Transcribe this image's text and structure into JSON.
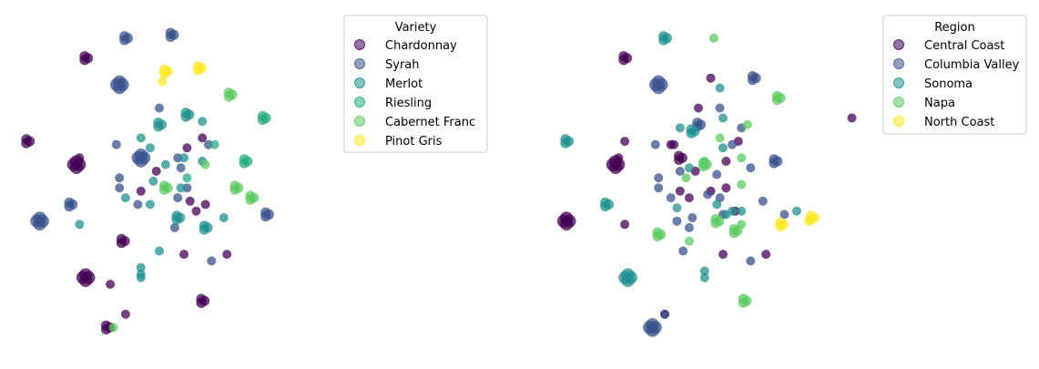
{
  "chart_data": [
    {
      "type": "scatter",
      "legend_title": "Variety",
      "legend_location": "upper-right",
      "axes_visible": false,
      "grid": false,
      "xlim": [
        0,
        100
      ],
      "ylim": [
        0,
        100
      ],
      "categories": [
        {
          "name": "Chardonnay",
          "color": "#440154"
        },
        {
          "name": "Syrah",
          "color": "#3b528b"
        },
        {
          "name": "Merlot",
          "color": "#21908d"
        },
        {
          "name": "Riesling",
          "color": "#27ad81"
        },
        {
          "name": "Cabernet Franc",
          "color": "#5ec962"
        },
        {
          "name": "Pinot Gris",
          "color": "#fde725"
        }
      ],
      "points": [
        {
          "x": 22,
          "y": 88,
          "c": 0,
          "s": 2
        },
        {
          "x": 3,
          "y": 63,
          "c": 0,
          "s": 2
        },
        {
          "x": 19,
          "y": 56,
          "c": 0,
          "s": 3
        },
        {
          "x": 20,
          "y": 58,
          "c": 0,
          "s": 1
        },
        {
          "x": 22,
          "y": 22,
          "c": 0,
          "s": 3
        },
        {
          "x": 34,
          "y": 33,
          "c": 0,
          "s": 2
        },
        {
          "x": 30,
          "y": 20,
          "c": 0,
          "s": 1
        },
        {
          "x": 29,
          "y": 7,
          "c": 0,
          "s": 2
        },
        {
          "x": 55,
          "y": 61,
          "c": 0,
          "s": 1
        },
        {
          "x": 45,
          "y": 54,
          "c": 0,
          "s": 1
        },
        {
          "x": 40,
          "y": 48,
          "c": 0,
          "s": 1
        },
        {
          "x": 56,
          "y": 45,
          "c": 0,
          "s": 1
        },
        {
          "x": 61,
          "y": 44,
          "c": 0,
          "s": 1
        },
        {
          "x": 58,
          "y": 42,
          "c": 0,
          "s": 1
        },
        {
          "x": 54,
          "y": 29,
          "c": 0,
          "s": 1
        },
        {
          "x": 68,
          "y": 29,
          "c": 0,
          "s": 1
        },
        {
          "x": 60,
          "y": 15,
          "c": 0,
          "s": 2
        },
        {
          "x": 35,
          "y": 11,
          "c": 0,
          "s": 1
        },
        {
          "x": 60,
          "y": 64,
          "c": 0,
          "s": 1
        },
        {
          "x": 35,
          "y": 94,
          "c": 1,
          "s": 2
        },
        {
          "x": 50,
          "y": 95,
          "c": 1,
          "s": 2
        },
        {
          "x": 33,
          "y": 80,
          "c": 1,
          "s": 3
        },
        {
          "x": 46,
          "y": 73,
          "c": 1,
          "s": 1
        },
        {
          "x": 32,
          "y": 62,
          "c": 1,
          "s": 1
        },
        {
          "x": 40,
          "y": 58,
          "c": 1,
          "s": 3
        },
        {
          "x": 33,
          "y": 52,
          "c": 1,
          "s": 1
        },
        {
          "x": 33,
          "y": 49,
          "c": 1,
          "s": 1
        },
        {
          "x": 17,
          "y": 44,
          "c": 1,
          "s": 2
        },
        {
          "x": 7,
          "y": 39,
          "c": 1,
          "s": 3
        },
        {
          "x": 52,
          "y": 58,
          "c": 1,
          "s": 1
        },
        {
          "x": 62,
          "y": 62,
          "c": 1,
          "s": 1
        },
        {
          "x": 53,
          "y": 55,
          "c": 1,
          "s": 1
        },
        {
          "x": 55,
          "y": 49,
          "c": 1,
          "s": 1
        },
        {
          "x": 52,
          "y": 46,
          "c": 1,
          "s": 1
        },
        {
          "x": 63,
          "y": 27,
          "c": 1,
          "s": 1
        },
        {
          "x": 81,
          "y": 41,
          "c": 1,
          "s": 2
        },
        {
          "x": 39,
          "y": 44,
          "c": 1,
          "s": 1
        },
        {
          "x": 51,
          "y": 37,
          "c": 1,
          "s": 1
        },
        {
          "x": 46,
          "y": 68,
          "c": 2,
          "s": 2
        },
        {
          "x": 40,
          "y": 64,
          "c": 2,
          "s": 1
        },
        {
          "x": 55,
          "y": 71,
          "c": 2,
          "s": 2
        },
        {
          "x": 60,
          "y": 69,
          "c": 2,
          "s": 1
        },
        {
          "x": 43,
          "y": 61,
          "c": 2,
          "s": 1
        },
        {
          "x": 48,
          "y": 56,
          "c": 2,
          "s": 1
        },
        {
          "x": 44,
          "y": 51,
          "c": 2,
          "s": 1
        },
        {
          "x": 53,
          "y": 49,
          "c": 2,
          "s": 1
        },
        {
          "x": 43,
          "y": 44,
          "c": 2,
          "s": 1
        },
        {
          "x": 20,
          "y": 38,
          "c": 2,
          "s": 1
        },
        {
          "x": 52,
          "y": 40,
          "c": 2,
          "s": 2
        },
        {
          "x": 61,
          "y": 37,
          "c": 2,
          "s": 2
        },
        {
          "x": 46,
          "y": 30,
          "c": 2,
          "s": 1
        },
        {
          "x": 40,
          "y": 25,
          "c": 2,
          "s": 1
        },
        {
          "x": 40,
          "y": 22,
          "c": 2,
          "s": 1
        },
        {
          "x": 35,
          "y": 46,
          "c": 2,
          "s": 1
        },
        {
          "x": 54,
          "y": 58,
          "c": 2,
          "s": 1
        },
        {
          "x": 60,
          "y": 57,
          "c": 2,
          "s": 1
        },
        {
          "x": 67,
          "y": 40,
          "c": 2,
          "s": 1
        },
        {
          "x": 40,
          "y": 23,
          "c": 2,
          "s": 1
        },
        {
          "x": 80,
          "y": 70,
          "c": 3,
          "s": 2
        },
        {
          "x": 64,
          "y": 62,
          "c": 3,
          "s": 1
        },
        {
          "x": 74,
          "y": 57,
          "c": 3,
          "s": 2
        },
        {
          "x": 55,
          "y": 52,
          "c": 3,
          "s": 1
        },
        {
          "x": 69,
          "y": 77,
          "c": 4,
          "s": 2
        },
        {
          "x": 61,
          "y": 56,
          "c": 4,
          "s": 1
        },
        {
          "x": 48,
          "y": 49,
          "c": 4,
          "s": 2
        },
        {
          "x": 71,
          "y": 49,
          "c": 4,
          "s": 2
        },
        {
          "x": 76,
          "y": 46,
          "c": 4,
          "s": 2
        },
        {
          "x": 31,
          "y": 7,
          "c": 4,
          "s": 1
        },
        {
          "x": 48,
          "y": 84,
          "c": 5,
          "s": 2
        },
        {
          "x": 59,
          "y": 85,
          "c": 5,
          "s": 2
        },
        {
          "x": 47,
          "y": 81,
          "c": 5,
          "s": 1
        }
      ]
    },
    {
      "type": "scatter",
      "legend_title": "Region",
      "legend_location": "upper-right",
      "axes_visible": false,
      "grid": false,
      "xlim": [
        0,
        100
      ],
      "ylim": [
        0,
        100
      ],
      "categories": [
        {
          "name": "Central Coast",
          "color": "#440154"
        },
        {
          "name": "Columbia Valley",
          "color": "#3b528b"
        },
        {
          "name": "Sonoma",
          "color": "#21908d"
        },
        {
          "name": "Napa",
          "color": "#5ec962"
        },
        {
          "name": "North Coast",
          "color": "#fde725"
        }
      ],
      "points": [
        {
          "x": 22,
          "y": 88,
          "c": 0,
          "s": 2
        },
        {
          "x": 19,
          "y": 56,
          "c": 0,
          "s": 3
        },
        {
          "x": 20,
          "y": 58,
          "c": 0,
          "s": 1
        },
        {
          "x": 3,
          "y": 39,
          "c": 0,
          "s": 3
        },
        {
          "x": 22,
          "y": 63,
          "c": 0,
          "s": 1
        },
        {
          "x": 40,
          "y": 58,
          "c": 0,
          "s": 2
        },
        {
          "x": 38,
          "y": 62,
          "c": 0,
          "s": 1
        },
        {
          "x": 45,
          "y": 54,
          "c": 0,
          "s": 1
        },
        {
          "x": 40,
          "y": 48,
          "c": 0,
          "s": 1
        },
        {
          "x": 50,
          "y": 48,
          "c": 0,
          "s": 1
        },
        {
          "x": 43,
          "y": 46,
          "c": 0,
          "s": 1
        },
        {
          "x": 55,
          "y": 49,
          "c": 0,
          "s": 1
        },
        {
          "x": 58,
          "y": 42,
          "c": 0,
          "s": 1
        },
        {
          "x": 55,
          "y": 57,
          "c": 0,
          "s": 1
        },
        {
          "x": 59,
          "y": 63,
          "c": 0,
          "s": 1
        },
        {
          "x": 54,
          "y": 29,
          "c": 0,
          "s": 1
        },
        {
          "x": 68,
          "y": 29,
          "c": 0,
          "s": 1
        },
        {
          "x": 50,
          "y": 82,
          "c": 0,
          "s": 1
        },
        {
          "x": 46,
          "y": 73,
          "c": 0,
          "s": 1
        },
        {
          "x": 35,
          "y": 11,
          "c": 0,
          "s": 1
        },
        {
          "x": 37,
          "y": 62,
          "c": 0,
          "s": 1
        },
        {
          "x": 96,
          "y": 70,
          "c": 0,
          "s": 1
        },
        {
          "x": 22,
          "y": 38,
          "c": 0,
          "s": 1
        },
        {
          "x": 33,
          "y": 80,
          "c": 1,
          "s": 3
        },
        {
          "x": 64,
          "y": 82,
          "c": 1,
          "s": 2
        },
        {
          "x": 53,
          "y": 73,
          "c": 1,
          "s": 1
        },
        {
          "x": 46,
          "y": 68,
          "c": 1,
          "s": 2
        },
        {
          "x": 32,
          "y": 62,
          "c": 1,
          "s": 1
        },
        {
          "x": 33,
          "y": 52,
          "c": 1,
          "s": 1
        },
        {
          "x": 33,
          "y": 49,
          "c": 1,
          "s": 1
        },
        {
          "x": 40,
          "y": 54,
          "c": 1,
          "s": 1
        },
        {
          "x": 52,
          "y": 53,
          "c": 1,
          "s": 1
        },
        {
          "x": 57,
          "y": 62,
          "c": 1,
          "s": 1
        },
        {
          "x": 60,
          "y": 67,
          "c": 1,
          "s": 1
        },
        {
          "x": 63,
          "y": 55,
          "c": 1,
          "s": 1
        },
        {
          "x": 71,
          "y": 57,
          "c": 1,
          "s": 2
        },
        {
          "x": 53,
          "y": 46,
          "c": 1,
          "s": 1
        },
        {
          "x": 49,
          "y": 47,
          "c": 1,
          "s": 1
        },
        {
          "x": 54,
          "y": 41,
          "c": 1,
          "s": 1
        },
        {
          "x": 67,
          "y": 45,
          "c": 1,
          "s": 1
        },
        {
          "x": 74,
          "y": 41,
          "c": 1,
          "s": 1
        },
        {
          "x": 39,
          "y": 39,
          "c": 1,
          "s": 1
        },
        {
          "x": 44,
          "y": 40,
          "c": 1,
          "s": 1
        },
        {
          "x": 43,
          "y": 37,
          "c": 1,
          "s": 1
        },
        {
          "x": 41,
          "y": 30,
          "c": 1,
          "s": 1
        },
        {
          "x": 63,
          "y": 27,
          "c": 1,
          "s": 1
        },
        {
          "x": 31,
          "y": 7,
          "c": 1,
          "s": 3
        },
        {
          "x": 35,
          "y": 11,
          "c": 1,
          "s": 1
        },
        {
          "x": 37,
          "y": 46,
          "c": 1,
          "s": 1
        },
        {
          "x": 35,
          "y": 94,
          "c": 2,
          "s": 2
        },
        {
          "x": 53,
          "y": 79,
          "c": 2,
          "s": 1
        },
        {
          "x": 44,
          "y": 66,
          "c": 2,
          "s": 2
        },
        {
          "x": 40,
          "y": 67,
          "c": 2,
          "s": 1
        },
        {
          "x": 54,
          "y": 70,
          "c": 2,
          "s": 1
        },
        {
          "x": 54,
          "y": 61,
          "c": 2,
          "s": 1
        },
        {
          "x": 3,
          "y": 63,
          "c": 2,
          "s": 2
        },
        {
          "x": 16,
          "y": 44,
          "c": 2,
          "s": 2
        },
        {
          "x": 39,
          "y": 43,
          "c": 2,
          "s": 1
        },
        {
          "x": 52,
          "y": 44,
          "c": 2,
          "s": 1
        },
        {
          "x": 60,
          "y": 42,
          "c": 2,
          "s": 1
        },
        {
          "x": 57,
          "y": 42,
          "c": 2,
          "s": 1
        },
        {
          "x": 55,
          "y": 41,
          "c": 2,
          "s": 1
        },
        {
          "x": 48,
          "y": 24,
          "c": 2,
          "s": 1
        },
        {
          "x": 48,
          "y": 22,
          "c": 2,
          "s": 1
        },
        {
          "x": 23,
          "y": 22,
          "c": 2,
          "s": 3
        },
        {
          "x": 43,
          "y": 55,
          "c": 2,
          "s": 1
        },
        {
          "x": 78,
          "y": 42,
          "c": 2,
          "s": 1
        },
        {
          "x": 51,
          "y": 94,
          "c": 3,
          "s": 1
        },
        {
          "x": 72,
          "y": 76,
          "c": 3,
          "s": 2
        },
        {
          "x": 62,
          "y": 68,
          "c": 3,
          "s": 1
        },
        {
          "x": 53,
          "y": 64,
          "c": 3,
          "s": 1
        },
        {
          "x": 42,
          "y": 52,
          "c": 3,
          "s": 1
        },
        {
          "x": 48,
          "y": 56,
          "c": 3,
          "s": 2
        },
        {
          "x": 60,
          "y": 58,
          "c": 3,
          "s": 1
        },
        {
          "x": 60,
          "y": 50,
          "c": 3,
          "s": 1
        },
        {
          "x": 52,
          "y": 39,
          "c": 3,
          "s": 2
        },
        {
          "x": 58,
          "y": 36,
          "c": 3,
          "s": 2
        },
        {
          "x": 60,
          "y": 38,
          "c": 3,
          "s": 1
        },
        {
          "x": 33,
          "y": 35,
          "c": 3,
          "s": 2
        },
        {
          "x": 43,
          "y": 33,
          "c": 3,
          "s": 1
        },
        {
          "x": 61,
          "y": 15,
          "c": 3,
          "s": 2
        },
        {
          "x": 48,
          "y": 57,
          "c": 3,
          "s": 1
        },
        {
          "x": 73,
          "y": 38,
          "c": 4,
          "s": 2
        },
        {
          "x": 83,
          "y": 40,
          "c": 4,
          "s": 2
        },
        {
          "x": 82,
          "y": 39,
          "c": 4,
          "s": 1
        }
      ]
    }
  ]
}
